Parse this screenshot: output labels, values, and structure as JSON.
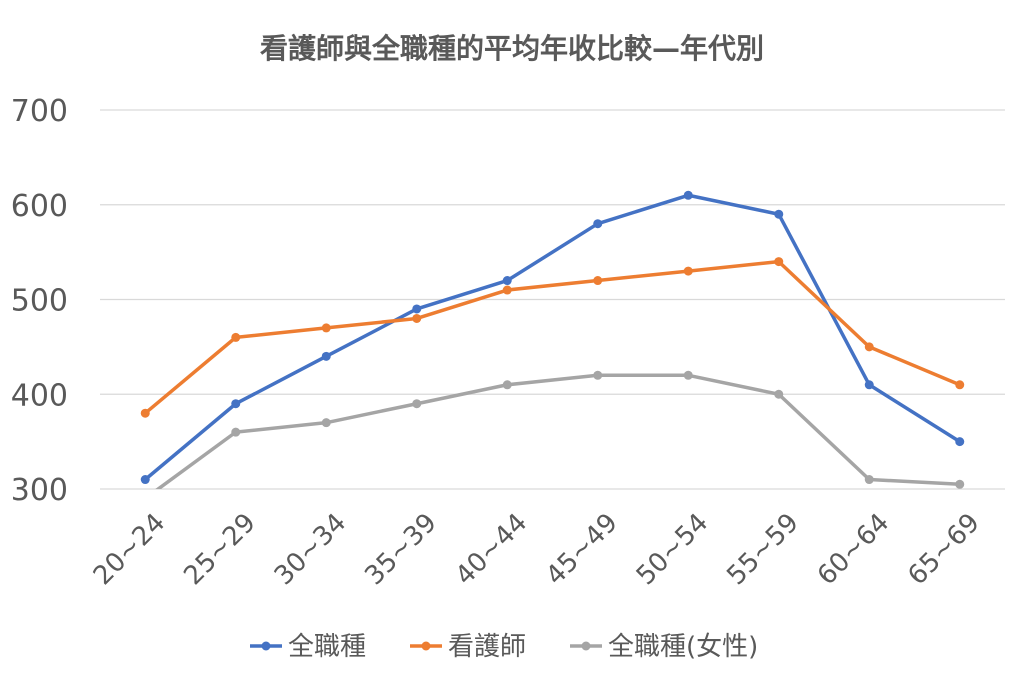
{
  "chart_data": {
    "type": "line",
    "title": "看護師與全職種的平均年收比較—年代別",
    "xlabel": "",
    "ylabel": "",
    "categories": [
      "20~24",
      "25~29",
      "30~34",
      "35~39",
      "40~44",
      "45~49",
      "50~54",
      "55~59",
      "60~64",
      "65~69"
    ],
    "ylim": [
      300,
      700
    ],
    "yticks": [
      300,
      400,
      500,
      600,
      700
    ],
    "grid": true,
    "legend": "bottom",
    "series": [
      {
        "name": "全職種",
        "color": "#4472c4",
        "values": [
          310,
          390,
          440,
          490,
          520,
          580,
          610,
          590,
          410,
          350
        ]
      },
      {
        "name": "看護師",
        "color": "#ed7d31",
        "values": [
          380,
          460,
          470,
          480,
          510,
          520,
          530,
          540,
          450,
          410
        ]
      },
      {
        "name": "全職種(女性)",
        "color": "#a5a5a5",
        "values": [
          290,
          360,
          370,
          390,
          410,
          420,
          420,
          400,
          310,
          305
        ]
      }
    ]
  }
}
